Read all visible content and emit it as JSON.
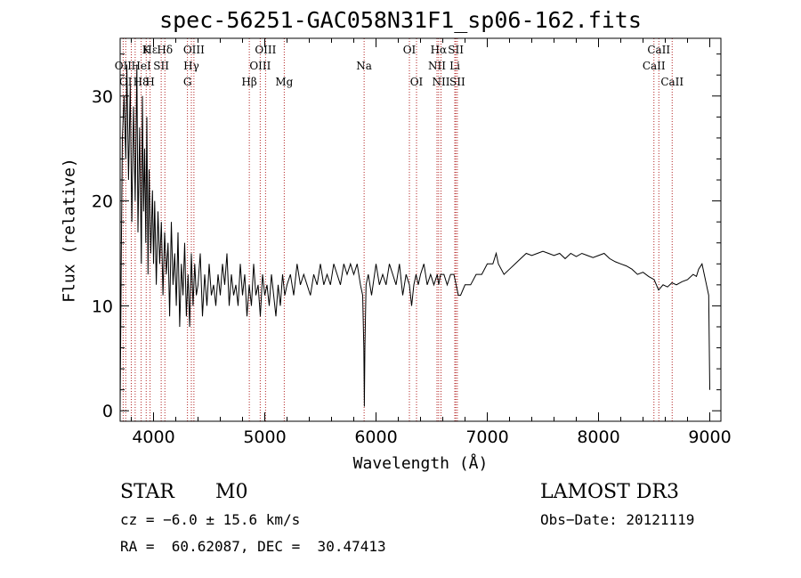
{
  "chart_data": {
    "type": "line",
    "title": "spec-56251-GAC058N31F1_sp06-162.fits",
    "xlabel": "Wavelength (Å)",
    "ylabel": "Flux (relative)",
    "xlim": [
      3700,
      9100
    ],
    "ylim": [
      -1,
      35.5
    ],
    "xticks": [
      4000,
      5000,
      6000,
      7000,
      8000,
      9000
    ],
    "yticks": [
      0,
      10,
      20,
      30
    ],
    "grid": false,
    "series": [
      {
        "x": [
          3700,
          3710,
          3720,
          3735,
          3750,
          3760,
          3775,
          3790,
          3805,
          3820,
          3835,
          3850,
          3860,
          3875,
          3890,
          3900,
          3910,
          3920,
          3930,
          3940,
          3950,
          3960,
          3975,
          3990,
          4000,
          4010,
          4025,
          4040,
          4055,
          4070,
          4085,
          4100,
          4115,
          4130,
          4145,
          4160,
          4175,
          4190,
          4205,
          4220,
          4235,
          4250,
          4265,
          4280,
          4295,
          4310,
          4325,
          4340,
          4355,
          4370,
          4385,
          4400,
          4420,
          4440,
          4460,
          4480,
          4500,
          4520,
          4540,
          4560,
          4580,
          4600,
          4620,
          4640,
          4660,
          4680,
          4700,
          4720,
          4740,
          4760,
          4780,
          4800,
          4820,
          4840,
          4860,
          4880,
          4900,
          4920,
          4940,
          4960,
          4980,
          5000,
          5020,
          5040,
          5060,
          5080,
          5100,
          5120,
          5140,
          5160,
          5180,
          5200,
          5230,
          5260,
          5290,
          5320,
          5350,
          5380,
          5410,
          5440,
          5470,
          5500,
          5530,
          5560,
          5590,
          5620,
          5650,
          5680,
          5710,
          5740,
          5770,
          5800,
          5830,
          5860,
          5880,
          5890,
          5895,
          5900,
          5910,
          5930,
          5960,
          6000,
          6030,
          6060,
          6090,
          6120,
          6150,
          6180,
          6210,
          6240,
          6270,
          6300,
          6320,
          6340,
          6360,
          6380,
          6400,
          6430,
          6460,
          6490,
          6520,
          6550,
          6563,
          6580,
          6610,
          6640,
          6670,
          6700,
          6720,
          6740,
          6760,
          6800,
          6850,
          6900,
          6950,
          7000,
          7050,
          7080,
          7100,
          7150,
          7200,
          7250,
          7300,
          7350,
          7400,
          7450,
          7500,
          7550,
          7600,
          7650,
          7700,
          7750,
          7800,
          7850,
          7900,
          7950,
          8000,
          8050,
          8100,
          8150,
          8200,
          8250,
          8300,
          8350,
          8400,
          8450,
          8500,
          8520,
          8540,
          8580,
          8620,
          8660,
          8700,
          8750,
          8800,
          8850,
          8880,
          8900,
          8930,
          8950,
          8970,
          8990,
          9000
        ],
        "y": [
          0.2,
          15,
          26,
          30,
          24,
          33,
          22,
          31,
          18,
          29,
          20,
          33,
          17,
          27,
          14,
          30,
          19,
          25,
          16,
          28,
          13,
          23,
          15,
          21,
          14,
          20,
          12,
          19,
          14,
          18,
          11,
          17,
          13,
          16,
          9,
          18,
          12,
          15,
          10,
          17,
          8,
          14,
          11,
          16,
          9,
          13,
          8,
          15,
          10,
          14,
          11,
          12,
          15,
          9,
          13,
          10,
          14,
          11,
          12,
          10,
          13,
          11,
          14,
          12,
          15,
          10,
          13,
          11,
          12,
          10,
          14,
          11,
          13,
          9,
          12,
          10,
          14,
          11,
          12,
          9,
          13,
          11,
          12,
          10,
          13,
          11,
          9,
          12,
          10,
          13,
          11,
          12,
          13,
          11,
          14,
          12,
          13,
          12,
          11,
          13,
          12,
          14,
          12,
          13,
          12,
          14,
          13,
          12,
          14,
          13,
          14,
          13,
          14,
          12,
          11,
          6,
          0.4,
          6,
          12,
          13,
          11,
          14,
          12,
          13,
          12,
          14,
          13,
          12,
          14,
          11,
          13,
          12,
          10,
          12,
          13,
          12,
          13,
          14,
          12,
          13,
          12,
          13,
          12,
          13,
          13,
          12,
          13,
          13,
          12,
          11,
          11,
          12,
          12,
          13,
          13,
          14,
          14,
          15,
          14,
          13,
          13.5,
          14,
          14.5,
          15,
          14.8,
          15,
          15.2,
          15,
          14.8,
          15,
          14.5,
          15,
          14.7,
          15,
          14.8,
          14.6,
          14.8,
          15,
          14.5,
          14.2,
          14,
          13.8,
          13.5,
          13,
          13.2,
          12.8,
          12.5,
          12,
          11.5,
          12,
          11.8,
          12.2,
          12,
          12.3,
          12.5,
          13,
          12.8,
          13.5,
          14,
          13,
          12,
          11,
          2
        ]
      }
    ],
    "lines_top": [
      {
        "label": "Hε",
        "row": 0,
        "x": 3970
      },
      {
        "label": "K",
        "row": 0,
        "x": 3934
      },
      {
        "label": "Hδ",
        "row": 0,
        "x": 4102
      },
      {
        "label": "OIII",
        "row": 0,
        "x": 4363
      },
      {
        "label": "OIII",
        "row": 0,
        "x": 5007
      },
      {
        "label": "OI",
        "row": 0,
        "x": 6300
      },
      {
        "label": "Hα",
        "row": 0,
        "x": 6563
      },
      {
        "label": "SII",
        "row": 0,
        "x": 6717
      },
      {
        "label": "CaII",
        "row": 0,
        "x": 8542
      },
      {
        "label": "OII",
        "row": 1,
        "x": 3727
      },
      {
        "label": "HeI",
        "row": 1,
        "x": 3889
      },
      {
        "label": "SII",
        "row": 1,
        "x": 4069
      },
      {
        "label": "Hγ",
        "row": 1,
        "x": 4340
      },
      {
        "label": "OIII",
        "row": 1,
        "x": 4959
      },
      {
        "label": "Na",
        "row": 1,
        "x": 5893
      },
      {
        "label": "NII",
        "row": 1,
        "x": 6548
      },
      {
        "label": "Li",
        "row": 1,
        "x": 6708
      },
      {
        "label": "CaII",
        "row": 1,
        "x": 8498
      },
      {
        "label": "OI",
        "row": 2,
        "x": 3750
      },
      {
        "label": "H8",
        "row": 2,
        "x": 3889
      },
      {
        "label": "H",
        "row": 2,
        "x": 3969
      },
      {
        "label": "G",
        "row": 2,
        "x": 4305
      },
      {
        "label": "Hβ",
        "row": 2,
        "x": 4861
      },
      {
        "label": "Mg",
        "row": 2,
        "x": 5175
      },
      {
        "label": "OI",
        "row": 2,
        "x": 6364
      },
      {
        "label": "NII",
        "row": 2,
        "x": 6584
      },
      {
        "label": "SII",
        "row": 2,
        "x": 6731
      },
      {
        "label": "CaII",
        "row": 2,
        "x": 8662
      }
    ],
    "line_positions": [
      3727,
      3750,
      3800,
      3835,
      3889,
      3934,
      3969,
      4069,
      4102,
      4305,
      4340,
      4363,
      4861,
      4959,
      5007,
      5175,
      5893,
      6300,
      6364,
      6548,
      6563,
      6584,
      6708,
      6717,
      6731,
      8498,
      8542,
      8662
    ]
  },
  "info": {
    "class_label": "STAR",
    "subclass_label": "M0",
    "cz": "cz = −6.0 ± 15.6 km/s",
    "radec": "RA =  60.62087, DEC =  30.47413",
    "survey": "LAMOST DR3",
    "obs_date": "Obs−Date: 20121119"
  }
}
